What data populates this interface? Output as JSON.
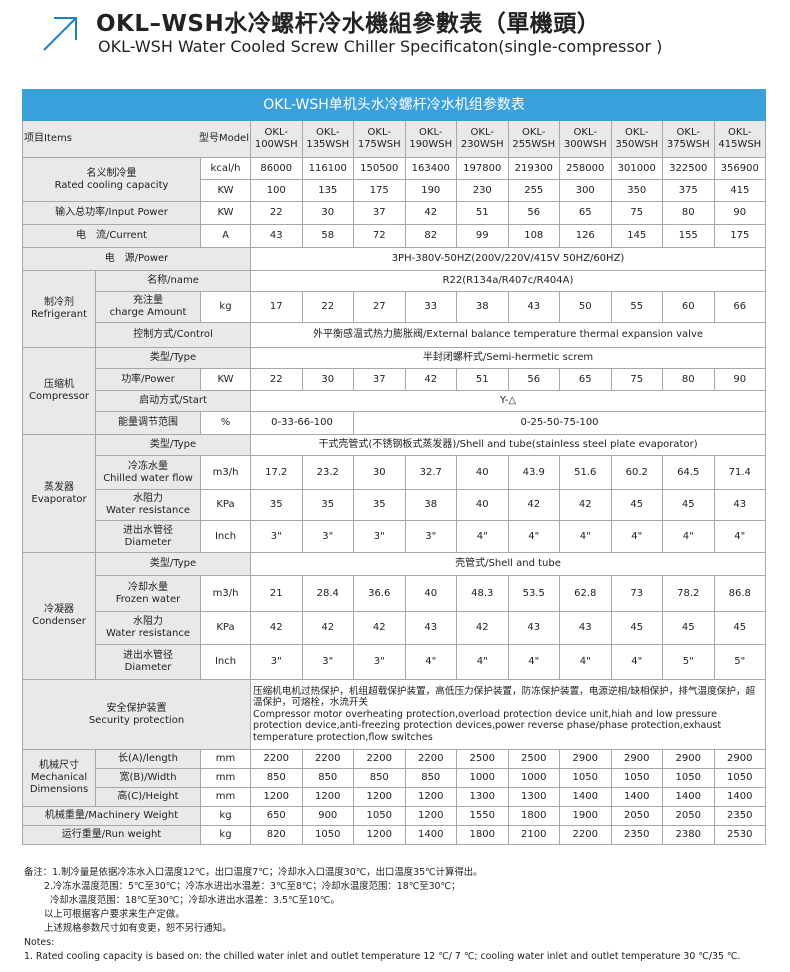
{
  "header": {
    "title_cn": "OKL–WSH水冷螺杆冷水機組參數表（單機頭）",
    "title_en": "OKL-WSH Water Cooled Screw Chiller Specificaton(single-compressor )"
  },
  "table": {
    "title": "OKL-WSH单机头水冷螺杆冷水机组参数表",
    "item_label": "项目Items",
    "model_label": "型号Model",
    "models": [
      "OKL-100WSH",
      "OKL-135WSH",
      "OKL-175WSH",
      "OKL-190WSH",
      "OKL-230WSH",
      "OKL-255WSH",
      "OKL-300WSH",
      "OKL-350WSH",
      "OKL-375WSH",
      "OKL-415WSH"
    ],
    "cooling": {
      "label_cn": "名义制冷量",
      "label_en": "Rated cooling capacity",
      "rows": [
        {
          "unit": "kcal/h",
          "values": [
            86000,
            116100,
            150500,
            163400,
            197800,
            219300,
            258000,
            301000,
            322500,
            356900
          ]
        },
        {
          "unit": "KW",
          "values": [
            100,
            135,
            175,
            190,
            230,
            255,
            300,
            350,
            375,
            415
          ]
        }
      ]
    },
    "input_power": {
      "label": "输入总功率/Input Power",
      "unit": "KW",
      "values": [
        22,
        30,
        37,
        42,
        51,
        56,
        65,
        75,
        80,
        90
      ]
    },
    "current": {
      "label": "电　流/Current",
      "unit": "A",
      "values": [
        43,
        58,
        72,
        82,
        99,
        108,
        126,
        145,
        155,
        175
      ]
    },
    "power_supply": {
      "label": "电　源/Power",
      "value": "3PH-380V-50HZ(200V/220V/415V  50HZ/60HZ)"
    },
    "refrigerant": {
      "label_cn": "制冷剂",
      "label_en": "Refrigerant",
      "name": {
        "label": "名称/name",
        "value": "R22(R134a/R407c/R404A)"
      },
      "charge": {
        "label_cn": "充注量",
        "label_en": "charge Amount",
        "unit": "kg",
        "values": [
          17,
          22,
          27,
          33,
          38,
          43,
          50,
          55,
          60,
          66
        ]
      },
      "control": {
        "label": "控制方式/Control",
        "value": "外平衡感温式热力膨胀阀/External balance temperature thermal expansion valve"
      }
    },
    "compressor": {
      "label_cn": "压缩机",
      "label_en": "Compressor",
      "type": {
        "label": "类型/Type",
        "value": "半封闭螺杆式/Semi-hermetic screm"
      },
      "power": {
        "label": "功率/Power",
        "unit": "KW",
        "values": [
          22,
          30,
          37,
          42,
          51,
          56,
          65,
          75,
          80,
          90
        ]
      },
      "start": {
        "label": "启动方式/Start",
        "value": "Y-△"
      },
      "capacity": {
        "label": "能量调节范围",
        "unit": "%",
        "values": [
          "0-33-66-100",
          "0-25-50-75-100"
        ]
      }
    },
    "evaporator": {
      "label_cn": "蒸发器",
      "label_en": "Evaporator",
      "type": {
        "label": "类型/Type",
        "value": "干式壳管式(不锈钢板式蒸发器)/Shell and tube(stainless steel plate evaporator)"
      },
      "flow": {
        "label_cn": "冷冻水量",
        "label_en": "Chilled water flow",
        "unit": "m3/h",
        "values": [
          17.2,
          23.2,
          30,
          32.7,
          40,
          43.9,
          51.6,
          60.2,
          64.5,
          71.4
        ]
      },
      "resistance": {
        "label_cn": "水阻力",
        "label_en": "Water resistance",
        "unit": "KPa",
        "values": [
          35,
          35,
          35,
          38,
          40,
          42,
          42,
          45,
          45,
          43
        ]
      },
      "diameter": {
        "label_cn": "进出水管径",
        "label_en": "Diameter",
        "unit": "Inch",
        "values": [
          "3\"",
          "3\"",
          "3\"",
          "3\"",
          "4\"",
          "4\"",
          "4\"",
          "4\"",
          "4\"",
          "4\""
        ]
      }
    },
    "condenser": {
      "label_cn": "冷凝器",
      "label_en": "Condenser",
      "type": {
        "label": "类型/Type",
        "value": "壳管式/Shell and tube"
      },
      "flow": {
        "label_cn": "冷却水量",
        "label_en": "Frozen water",
        "unit": "m3/h",
        "values": [
          21,
          28.4,
          36.6,
          40,
          48.3,
          53.5,
          62.8,
          73,
          78.2,
          86.8
        ]
      },
      "resistance": {
        "label_cn": "水阻力",
        "label_en": "Water resistance",
        "unit": "KPa",
        "values": [
          42,
          42,
          42,
          43,
          42,
          43,
          43,
          45,
          45,
          45
        ]
      },
      "diameter": {
        "label_cn": "进出水管径",
        "label_en": "Diameter",
        "unit": "Inch",
        "values": [
          "3\"",
          "3\"",
          "3\"",
          "4\"",
          "4\"",
          "4\"",
          "4\"",
          "4\"",
          "5\"",
          "5\""
        ]
      }
    },
    "security": {
      "label_cn": "安全保护装置",
      "label_en": "Security protection",
      "text_cn": "压缩机电机过热保护，机组超载保护装置，高低压力保护装置，防冻保护装置，电源逆相/缺相保护，排气温度保护，超温保护，可熔栓，水流开关",
      "text_en": "Compressor motor overheating protection,overload protection device unit,hiah and low pressure protection device,anti-freezing protection devices,power reverse phase/phase protection,exhaust temperature protection,flow switches"
    },
    "dimensions": {
      "label_cn": "机械尺寸",
      "label_en": "Mechanical Dimensions",
      "unit": "mm",
      "rows": [
        {
          "label": "长(A)/length",
          "values": [
            2200,
            2200,
            2200,
            2200,
            2500,
            2500,
            2900,
            2900,
            2900,
            2900
          ]
        },
        {
          "label": "宽(B)/Width",
          "values": [
            850,
            850,
            850,
            850,
            1000,
            1000,
            1050,
            1050,
            1050,
            1050
          ]
        },
        {
          "label": "高(C)/Height",
          "values": [
            1200,
            1200,
            1200,
            1200,
            1300,
            1300,
            1400,
            1400,
            1400,
            1400
          ]
        }
      ]
    },
    "machinery_weight": {
      "label": "机械重量/Machinery Weight",
      "unit": "kg",
      "values": [
        650,
        900,
        1050,
        1200,
        1550,
        1800,
        1900,
        2050,
        2050,
        2350
      ]
    },
    "run_weight": {
      "label": "运行重量/Run weight",
      "unit": "kg",
      "values": [
        820,
        1050,
        1200,
        1400,
        1800,
        2100,
        2200,
        2350,
        2380,
        2530
      ]
    }
  },
  "notes": [
    "备注：1.制冷量是依据冷冻水入口温度12℃，出口温度7℃；冷却水入口温度30℃，出口温度35℃计算得出。",
    "2.冷冻水温度范围：5℃至30℃；冷冻水进出水温差：3℃至8℃；冷却水温度范围：18℃至30℃；",
    "冷却水温度范围：18℃至30℃；冷却水进出水温差：3.5℃至10℃。",
    "以上可根据客户要求来生产定做。",
    "上述规格参数尺寸如有变更，恕不另行通知。",
    "Notes:",
    "1. Rated cooling capacity is based on: the chilled water inlet and outlet temperature 12 ℃/ 7 ℃; cooling water inlet and outlet temperature 30 ℃/35 ℃."
  ]
}
